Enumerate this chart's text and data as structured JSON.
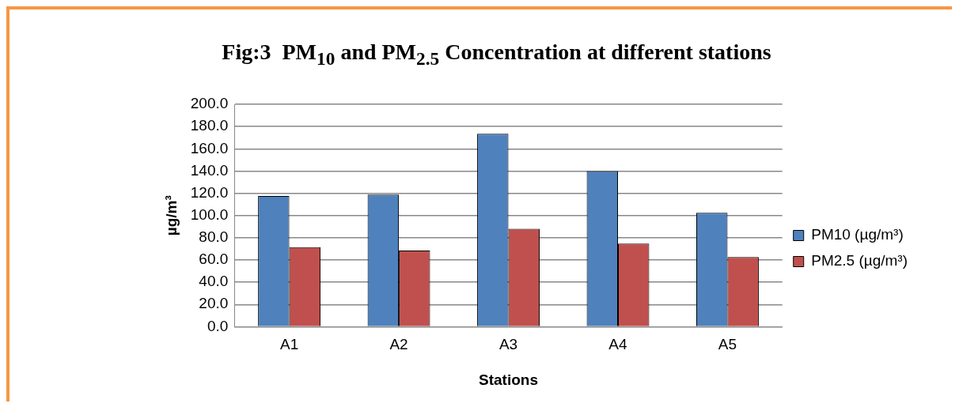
{
  "chart_data": {
    "type": "bar",
    "title": "Fig:3  PM$_{10}$ and PM$_{2.5}$ Concentration at different stations",
    "xlabel": "Stations",
    "ylabel": "µg/m³",
    "categories": [
      "A1",
      "A2",
      "A3",
      "A4",
      "A5"
    ],
    "series": [
      {
        "name": "PM10 (µg/m³)",
        "color": "#4f81bd",
        "values": [
          117.5,
          118.8,
          173.6,
          140.0,
          102.4
        ]
      },
      {
        "name": "PM2.5 (µg/m³)",
        "color": "#c0504d",
        "values": [
          71.5,
          68.5,
          88.1,
          74.7,
          62.6
        ]
      }
    ],
    "ylim": [
      0,
      200
    ],
    "yticks": [
      {
        "value": 0,
        "label": "0.0"
      },
      {
        "value": 20,
        "label": "20.0"
      },
      {
        "value": 40,
        "label": "40.0"
      },
      {
        "value": 60,
        "label": "60.0"
      },
      {
        "value": 80,
        "label": "80.0"
      },
      {
        "value": 100,
        "label": "100.0"
      },
      {
        "value": 120,
        "label": "120.0"
      },
      {
        "value": 140,
        "label": "140.0"
      },
      {
        "value": 160,
        "label": "160.0"
      },
      {
        "value": 180,
        "label": "180.0"
      },
      {
        "value": 200,
        "label": "200.0"
      }
    ],
    "grid": "y",
    "legend": "right"
  }
}
